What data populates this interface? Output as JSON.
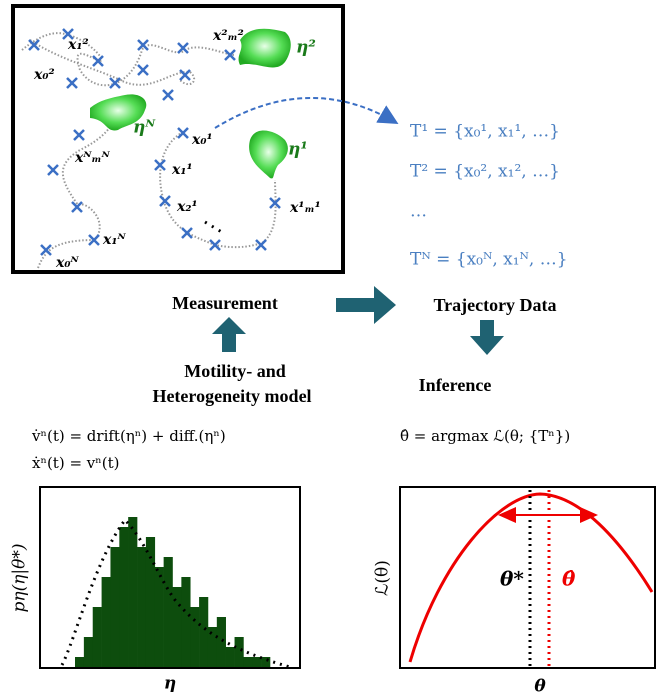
{
  "box": {
    "labels": [
      "x₁²",
      "x₀²",
      "x²ₘ²",
      "η²",
      "ηᴺ",
      "x₀¹",
      "xᴺₘᴺ",
      "η¹",
      "x₁¹",
      "x₂¹",
      "x¹ₘ¹",
      "x₁ᴺ",
      "x₀ᴺ"
    ]
  },
  "trajectories": [
    "T¹ = {x₀¹, x₁¹, …}",
    "T² = {x₀², x₁², …}",
    "…",
    "Tᴺ = {x₀ᴺ, x₁ᴺ, …}"
  ],
  "flow": {
    "measurement": "Measurement",
    "trajectory_data": "Trajectory Data",
    "model_line1": "Motility- and",
    "model_line2": "Heterogeneity model",
    "inference": "Inference"
  },
  "equations": [
    "v̇ⁿ(t) = drift(ηⁿ) + diff.(ηⁿ)",
    "ẋⁿ(t) = vⁿ(t)",
    "θ̂ = argmax ℒ(θ; {Tⁿ})"
  ],
  "histogram": {
    "ylabel": "pη(η|θ*)",
    "xlabel": "η",
    "color": "#0d4d0d",
    "counts": [
      1,
      3,
      6,
      9,
      12,
      14,
      15,
      12,
      13,
      10,
      11,
      8,
      9,
      6,
      7,
      4,
      5,
      2,
      3,
      1,
      1,
      1
    ]
  },
  "likelihood": {
    "ylabel": "ℒ(θ)",
    "xlabel": "θ",
    "true_label": "θ*",
    "estimate_label": "θ̂"
  }
}
